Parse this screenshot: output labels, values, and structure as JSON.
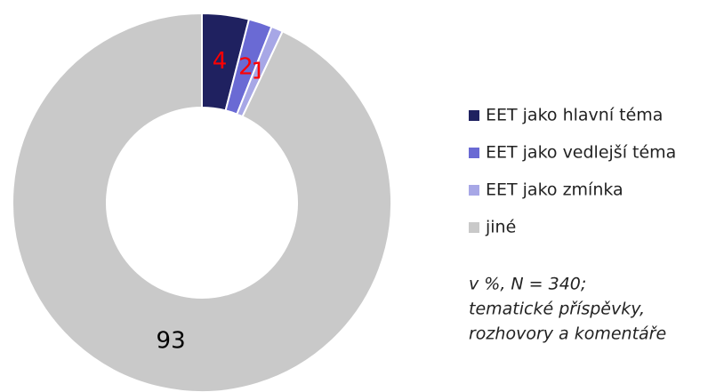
{
  "chart_data": {
    "type": "donut",
    "categories": [
      "EET jako hlavní téma",
      "EET jako vedlejší téma",
      "EET jako zmínka",
      "jiné"
    ],
    "values": [
      4,
      2,
      1,
      93
    ],
    "colors": [
      "#1f2160",
      "#6a6ad4",
      "#a7a7e6",
      "#c9c9c9"
    ],
    "value_label_colors": [
      "#ff0000",
      "#ff0000",
      "#ff0000",
      "#000000"
    ],
    "note": [
      "v %, N = 340;",
      "tematické příspěvky,",
      "rozhovory a komentáře"
    ]
  }
}
